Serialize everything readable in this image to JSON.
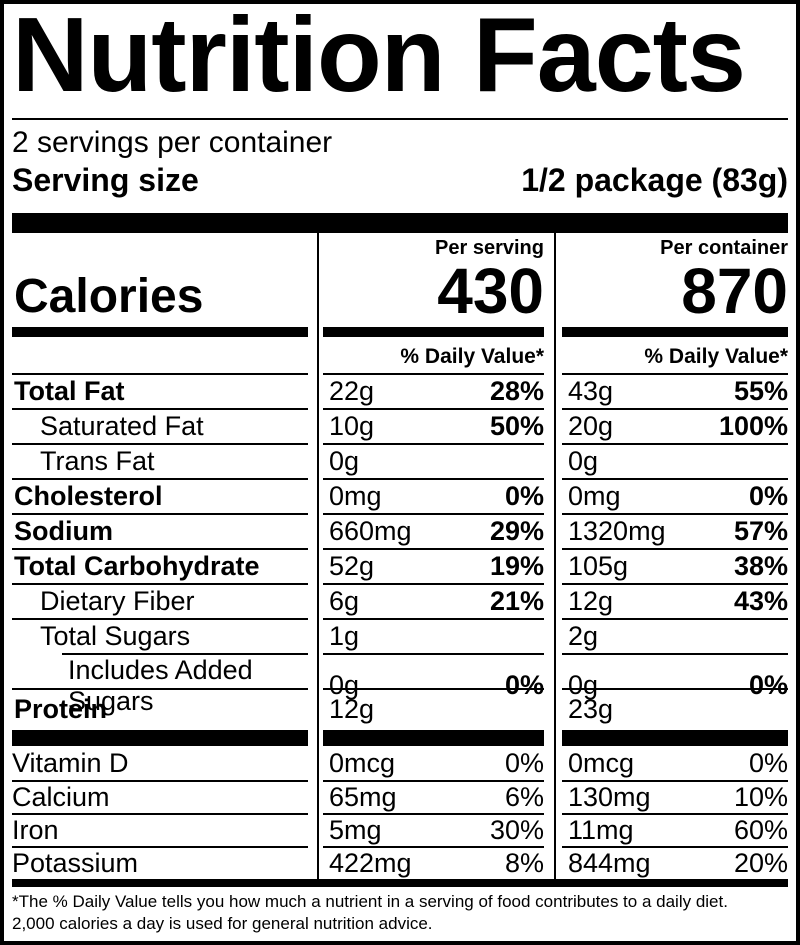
{
  "colors": {
    "text": "#000000",
    "background": "#ffffff"
  },
  "title": "Nutrition Facts",
  "servings_per_container": "2 servings per container",
  "serving_size": {
    "label": "Serving size",
    "value": "1/2 package (83g)"
  },
  "calories": {
    "label": "Calories",
    "serving_header": "Per serving",
    "container_header": "Per container",
    "serving_value": "430",
    "container_value": "870"
  },
  "daily_value_header": {
    "serving": "% Daily Value*",
    "container": "% Daily Value*"
  },
  "nutrients": [
    {
      "name": "Total Fat",
      "s_amt": "22g",
      "s_dv": "28%",
      "c_amt": "43g",
      "c_dv": "55%"
    },
    {
      "name": "Saturated Fat",
      "s_amt": "10g",
      "s_dv": "50%",
      "c_amt": "20g",
      "c_dv": "100%"
    },
    {
      "name": "Trans Fat",
      "s_amt": "0g",
      "s_dv": "",
      "c_amt": "0g",
      "c_dv": ""
    },
    {
      "name": "Cholesterol",
      "s_amt": "0mg",
      "s_dv": "0%",
      "c_amt": "0mg",
      "c_dv": "0%"
    },
    {
      "name": "Sodium",
      "s_amt": "660mg",
      "s_dv": "29%",
      "c_amt": "1320mg",
      "c_dv": "57%"
    },
    {
      "name": "Total Carbohydrate",
      "s_amt": "52g",
      "s_dv": "19%",
      "c_amt": "105g",
      "c_dv": "38%"
    },
    {
      "name": "Dietary Fiber",
      "s_amt": "6g",
      "s_dv": "21%",
      "c_amt": "12g",
      "c_dv": "43%"
    },
    {
      "name": "Total Sugars",
      "s_amt": "1g",
      "s_dv": "",
      "c_amt": "2g",
      "c_dv": ""
    },
    {
      "name": "Includes Added Sugars",
      "s_amt": "0g",
      "s_dv": "0%",
      "c_amt": "0g",
      "c_dv": "0%"
    },
    {
      "name": "Protein",
      "s_amt": "12g",
      "s_dv": "",
      "c_amt": "23g",
      "c_dv": ""
    }
  ],
  "vitamins": [
    {
      "name": "Vitamin D",
      "s_amt": "0mcg",
      "s_dv": "0%",
      "c_amt": "0mcg",
      "c_dv": "0%"
    },
    {
      "name": "Calcium",
      "s_amt": "65mg",
      "s_dv": "6%",
      "c_amt": "130mg",
      "c_dv": "10%"
    },
    {
      "name": "Iron",
      "s_amt": "5mg",
      "s_dv": "30%",
      "c_amt": "11mg",
      "c_dv": "60%"
    },
    {
      "name": "Potassium",
      "s_amt": "422mg",
      "s_dv": "8%",
      "c_amt": "844mg",
      "c_dv": "20%"
    }
  ],
  "footnote": {
    "line1": "*The % Daily Value tells you how much a nutrient in a serving of food contributes to a daily diet.",
    "line2": "2,000 calories a day is used for general nutrition advice."
  }
}
